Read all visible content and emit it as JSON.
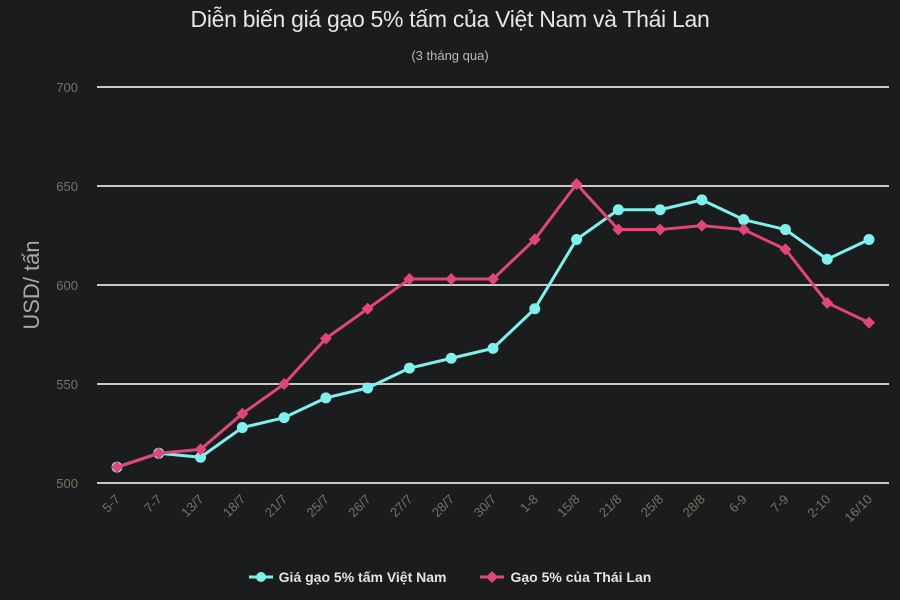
{
  "header": {
    "title": "Diễn biến giá gạo 5% tấm của Việt Nam và Thái Lan",
    "subtitle": "(3 tháng qua)"
  },
  "colors": {
    "background": "#1b1c1e",
    "vietnam": "#7ff0ec",
    "thailand": "#e0467a",
    "grid": "#c8c8c8",
    "tick_label": "#7a7262"
  },
  "legend": {
    "items": [
      {
        "label": "Giá gạo 5% tấm Việt Nam",
        "marker": "circle",
        "color": "#7ff0ec"
      },
      {
        "label": "Gạo 5% của Thái Lan",
        "marker": "diamond",
        "color": "#e0467a"
      }
    ]
  },
  "chart_data": {
    "type": "line",
    "title": "Diễn biến giá gạo 5% tấm của Việt Nam và Thái Lan",
    "subtitle": "(3 tháng qua)",
    "xlabel": "",
    "ylabel": "USD/ tấn",
    "ylim": [
      500,
      700
    ],
    "yticks": [
      500,
      550,
      600,
      650,
      700
    ],
    "grid": true,
    "legend_position": "bottom",
    "categories": [
      "5-7",
      "7-7",
      "13/7",
      "18/7",
      "21/7",
      "25/7",
      "26/7",
      "27/7",
      "28/7",
      "30/7",
      "1-8",
      "15/8",
      "21/8",
      "25/8",
      "28/8",
      "6-9",
      "7-9",
      "2-10",
      "16/10"
    ],
    "series": [
      {
        "name": "Giá gạo 5% tấm Việt Nam",
        "marker": "circle",
        "color": "#7ff0ec",
        "values": [
          508,
          515,
          513,
          528,
          533,
          543,
          548,
          558,
          563,
          568,
          588,
          623,
          638,
          638,
          643,
          633,
          628,
          613,
          623
        ]
      },
      {
        "name": "Gạo 5% của Thái Lan",
        "marker": "diamond",
        "color": "#e0467a",
        "values": [
          508,
          515,
          517,
          535,
          550,
          573,
          588,
          603,
          603,
          603,
          623,
          651,
          628,
          628,
          630,
          628,
          618,
          591,
          581
        ]
      }
    ]
  }
}
